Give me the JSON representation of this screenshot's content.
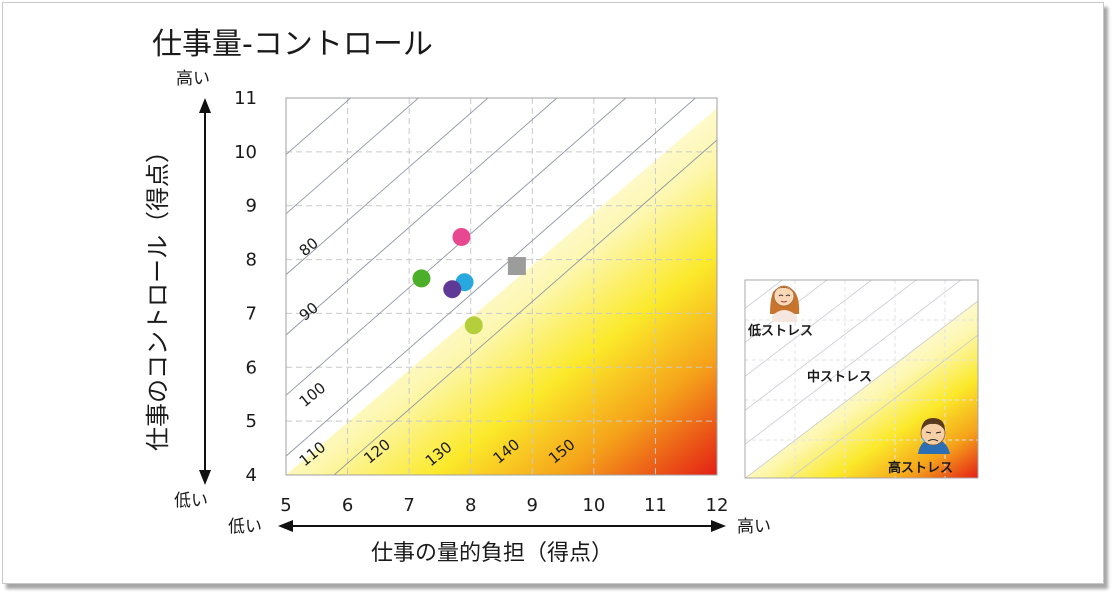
{
  "chart_data": {
    "type": "scatter",
    "title": "仕事量-コントロール",
    "xlabel": "仕事の量的負担（得点）",
    "ylabel": "仕事のコントロール（得点）",
    "xlim": [
      5,
      12
    ],
    "ylim": [
      4,
      11
    ],
    "xticks": [
      5,
      6,
      7,
      8,
      9,
      10,
      11,
      12
    ],
    "yticks": [
      4,
      5,
      6,
      7,
      8,
      9,
      10,
      11
    ],
    "grid": true,
    "x_low_label": "低い",
    "x_high_label": "高い",
    "y_low_label": "低い",
    "y_high_label": "高い",
    "contours": [
      {
        "label": "80",
        "value": 80
      },
      {
        "label": "90",
        "value": 90
      },
      {
        "label": "100",
        "value": 100
      },
      {
        "label": "110",
        "value": 110
      },
      {
        "label": "120",
        "value": 120
      },
      {
        "label": "130",
        "value": 130
      },
      {
        "label": "140",
        "value": 140
      },
      {
        "label": "150",
        "value": 150
      }
    ],
    "points": [
      {
        "x": 7.85,
        "y": 8.42,
        "color": "#e8488f",
        "shape": "circle"
      },
      {
        "x": 7.2,
        "y": 7.65,
        "color": "#4caf2a",
        "shape": "circle"
      },
      {
        "x": 7.9,
        "y": 7.58,
        "color": "#29a8e0",
        "shape": "circle"
      },
      {
        "x": 7.7,
        "y": 7.45,
        "color": "#5e3a96",
        "shape": "circle"
      },
      {
        "x": 8.05,
        "y": 6.78,
        "color": "#b5cf3c",
        "shape": "circle"
      },
      {
        "x": 8.75,
        "y": 7.88,
        "color": "#9c9c9c",
        "shape": "square"
      }
    ]
  },
  "legend": {
    "low_stress": "低ストレス",
    "mid_stress": "中ストレス",
    "high_stress": "高ストレス"
  },
  "colors": {
    "gradient_start": "#ffffff",
    "gradient_yellow": "#fbe92a",
    "gradient_orange": "#f5a21a",
    "gradient_red": "#e41f15"
  }
}
